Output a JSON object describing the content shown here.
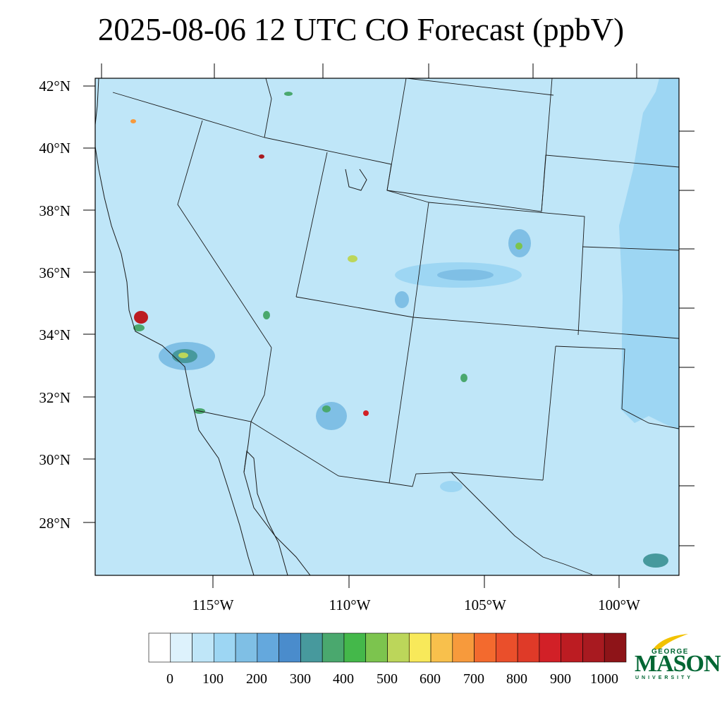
{
  "title": "2025-08-06 12 UTC CO Forecast (ppbV)",
  "lat_labels": [
    "42°N",
    "40°N",
    "38°N",
    "36°N",
    "34°N",
    "32°N",
    "30°N",
    "28°N"
  ],
  "lon_labels": [
    "115°W",
    "110°W",
    "105°W",
    "100°W"
  ],
  "colorbar": {
    "labels": [
      "0",
      "100",
      "200",
      "300",
      "400",
      "500",
      "600",
      "700",
      "800",
      "900",
      "1000"
    ],
    "colors": [
      "#ffffff",
      "#ddf2fc",
      "#bfe6f8",
      "#9dd6f3",
      "#7fbfe5",
      "#64a8dd",
      "#4a8ccc",
      "#47999d",
      "#4aa86e",
      "#44b84a",
      "#7cc44e",
      "#bcd65a",
      "#f8e95a",
      "#f8c04c",
      "#f79a3c",
      "#f36a2e",
      "#ea4f2b",
      "#df3a28",
      "#d22027",
      "#bc1c22",
      "#a81a20",
      "#8e1418"
    ]
  },
  "map_colors": {
    "background": "#bfe6f8",
    "gulf": "#9dd6f3",
    "border": "#1a1a1a"
  },
  "logo": {
    "line1": "GEORGE",
    "line2": "MASON",
    "line3": "UNIVERSITY",
    "color": "#006633",
    "accent": "#f2c200"
  }
}
